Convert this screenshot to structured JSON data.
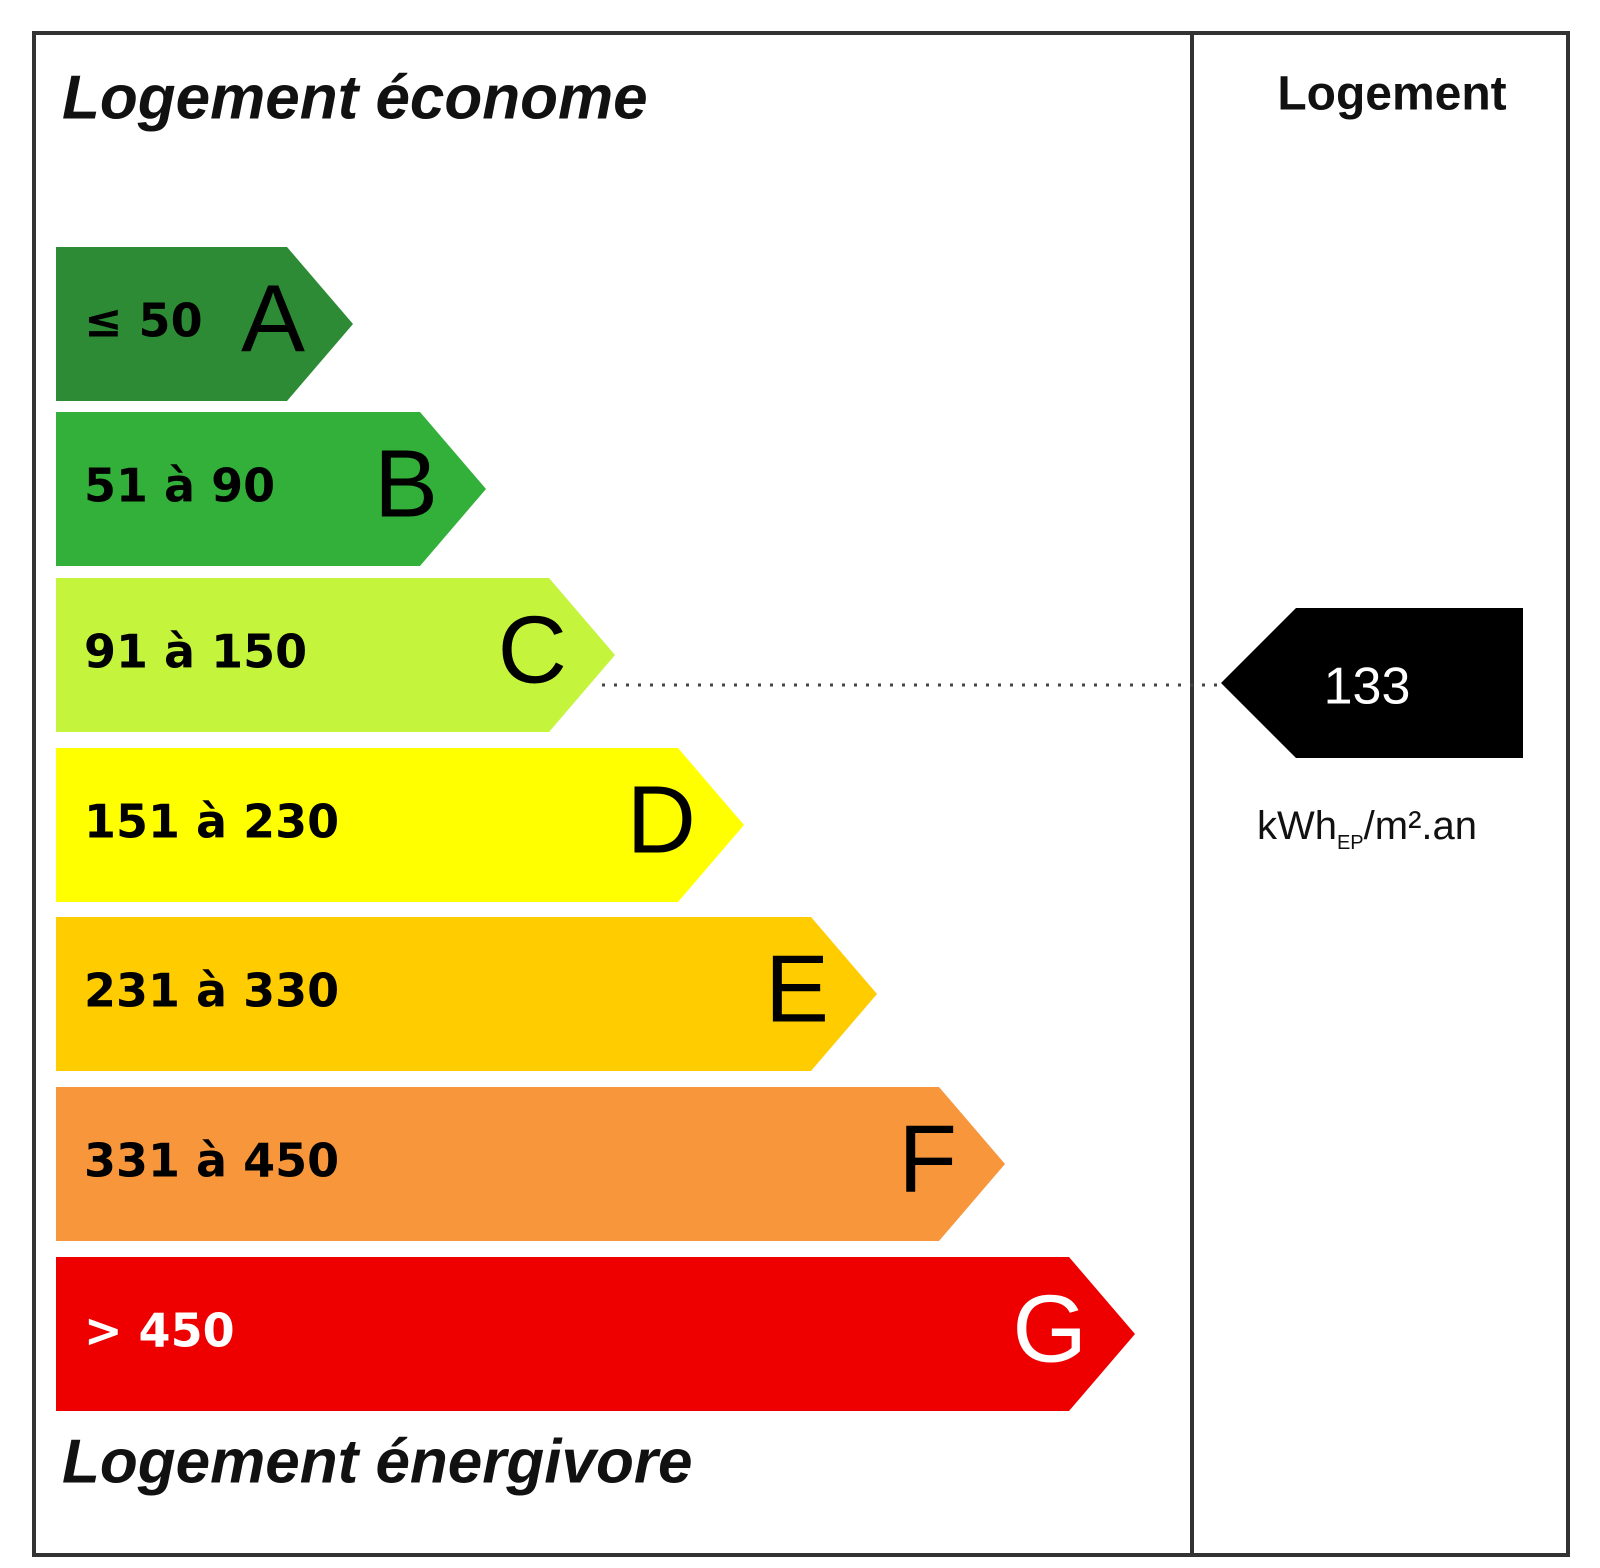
{
  "header": {
    "title_top": "Logement économe",
    "title_bottom": "Logement énergivore",
    "column_title": "Logement"
  },
  "classes": [
    {
      "range": "≤ 50",
      "letter": "A",
      "color": "#2e8b35",
      "text_color": "#000000"
    },
    {
      "range": "51 à 90",
      "letter": "B",
      "color": "#33b03a",
      "text_color": "#000000"
    },
    {
      "range": "91 à 150",
      "letter": "C",
      "color": "#c4f43c",
      "text_color": "#000000"
    },
    {
      "range": "151 à 230",
      "letter": "D",
      "color": "#ffff00",
      "text_color": "#000000"
    },
    {
      "range": "231 à 330",
      "letter": "E",
      "color": "#ffcc00",
      "text_color": "#000000"
    },
    {
      "range": "331 à 450",
      "letter": "F",
      "color": "#f7963a",
      "text_color": "#000000"
    },
    {
      "range": "> 450",
      "letter": "G",
      "color": "#ee0000",
      "text_color": "#ffffff"
    }
  ],
  "indicator": {
    "value": "133",
    "unit_main": "kWh",
    "unit_sub": "EP",
    "unit_rest": "/m².an"
  }
}
